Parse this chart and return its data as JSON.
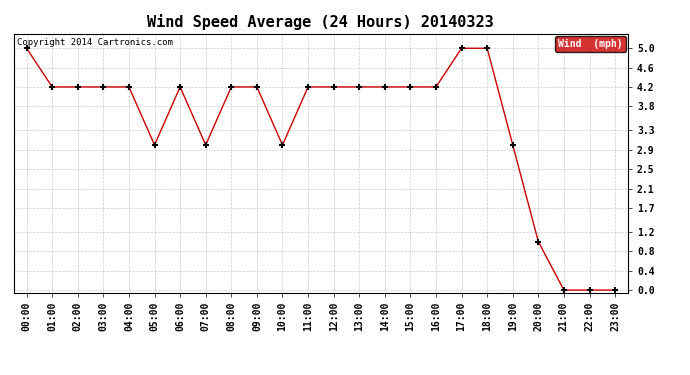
{
  "title": "Wind Speed Average (24 Hours) 20140323",
  "copyright_text": "Copyright 2014 Cartronics.com",
  "x_labels": [
    "00:00",
    "01:00",
    "02:00",
    "03:00",
    "04:00",
    "05:00",
    "06:00",
    "07:00",
    "08:00",
    "09:00",
    "10:00",
    "11:00",
    "12:00",
    "13:00",
    "14:00",
    "15:00",
    "16:00",
    "17:00",
    "18:00",
    "19:00",
    "20:00",
    "21:00",
    "22:00",
    "23:00"
  ],
  "y_values": [
    5.0,
    4.2,
    4.2,
    4.2,
    4.2,
    3.0,
    4.2,
    3.0,
    4.2,
    4.2,
    3.0,
    4.2,
    4.2,
    4.2,
    4.2,
    4.2,
    4.2,
    5.0,
    5.0,
    3.0,
    1.0,
    0.0,
    0.0,
    0.0
  ],
  "line_color": "#cc0000",
  "marker": "+",
  "legend_label": "Wind  (mph)",
  "legend_bg": "#cc0000",
  "legend_text_color": "#ffffff",
  "y_ticks": [
    0.0,
    0.4,
    0.8,
    1.2,
    1.7,
    2.1,
    2.5,
    2.9,
    3.3,
    3.8,
    4.2,
    4.6,
    5.0
  ],
  "ylim": [
    -0.05,
    5.3
  ],
  "background_color": "#ffffff",
  "grid_color": "#aaaaaa",
  "title_fontsize": 11,
  "axis_fontsize": 7,
  "copyright_fontsize": 6.5
}
